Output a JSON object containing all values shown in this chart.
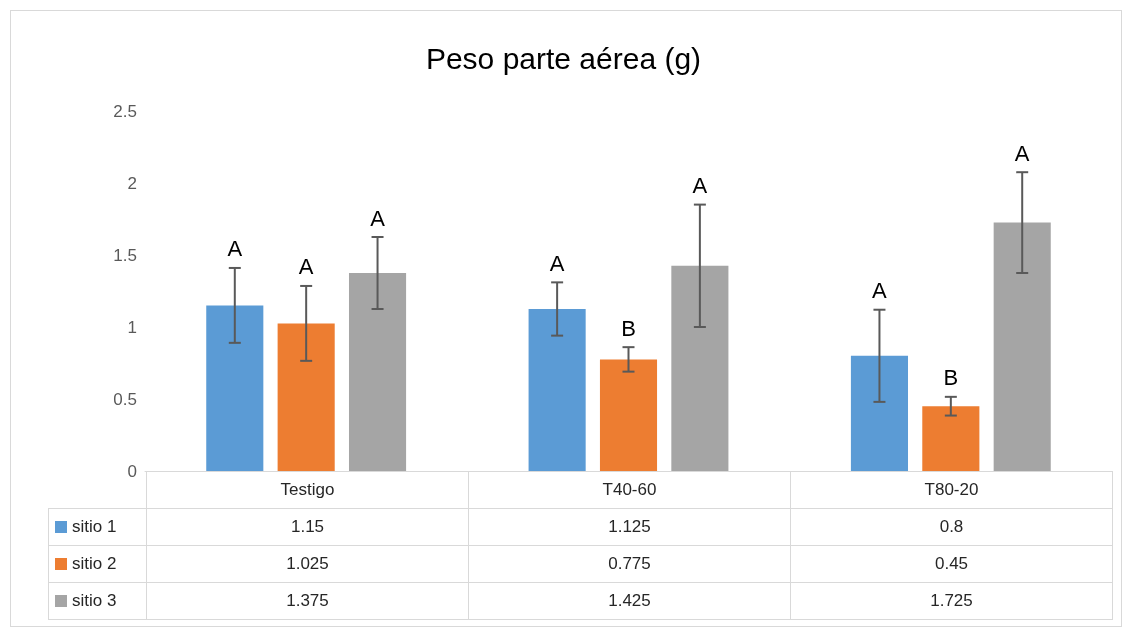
{
  "chart_data": {
    "type": "bar",
    "title": "Peso parte aérea (g)",
    "categories": [
      "Testigo",
      "T40-60",
      "T80-20"
    ],
    "series": [
      {
        "name": "sitio 1",
        "color": "#5b9bd5",
        "values": [
          1.15,
          1.125,
          0.8
        ],
        "errors": [
          0.26,
          0.185,
          0.32
        ]
      },
      {
        "name": "sitio 2",
        "color": "#ed7d31",
        "values": [
          1.025,
          0.775,
          0.45
        ],
        "errors": [
          0.26,
          0.085,
          0.065
        ]
      },
      {
        "name": "sitio 3",
        "color": "#a5a5a5",
        "values": [
          1.375,
          1.425,
          1.725
        ],
        "errors": [
          0.25,
          0.425,
          0.35
        ]
      }
    ],
    "annotations": [
      "A",
      "A",
      "A",
      "A",
      "B",
      "A",
      "A",
      "B",
      "A"
    ],
    "ylim": [
      0,
      2.5
    ],
    "yticks": [
      0,
      0.5,
      1,
      1.5,
      2,
      2.5
    ],
    "grid": false,
    "legend": "bottom",
    "data_labels": true
  }
}
